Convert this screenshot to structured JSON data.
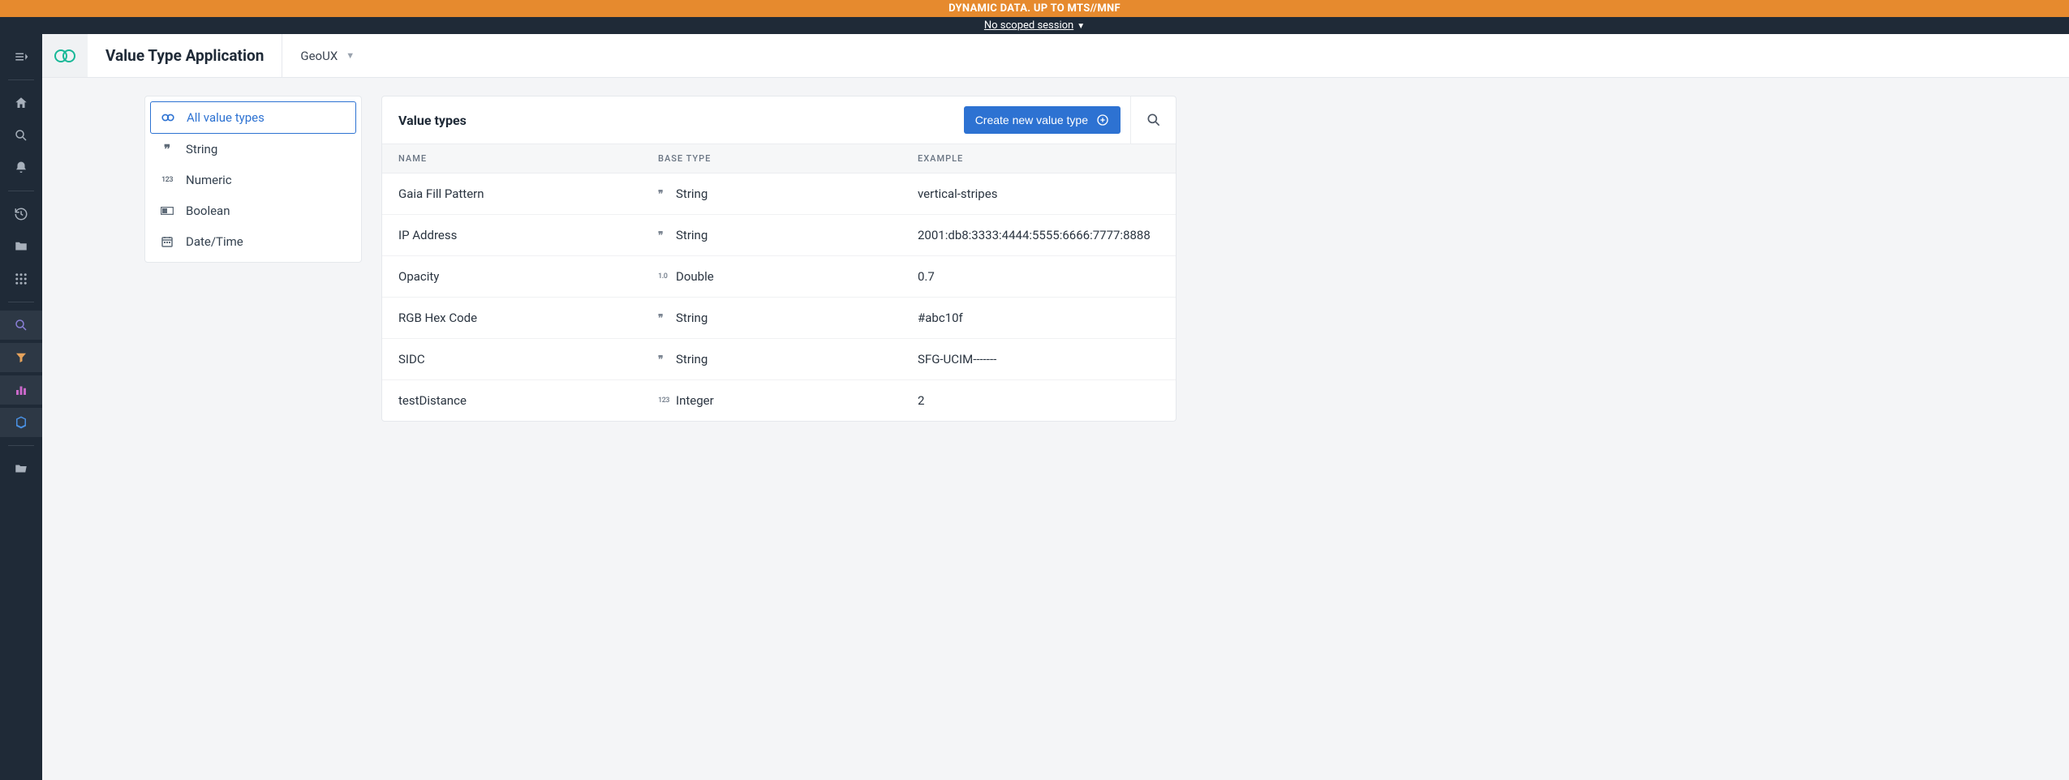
{
  "banner": {
    "top_text": "DYNAMIC DATA. UP TO MTS//MNF",
    "session_text": "No scoped session"
  },
  "topbar": {
    "title": "Value Type Application",
    "dropdown_label": "GeoUX"
  },
  "filters": {
    "items": [
      {
        "label": "All value types"
      },
      {
        "label": "String"
      },
      {
        "label": "Numeric"
      },
      {
        "label": "Boolean"
      },
      {
        "label": "Date/Time"
      }
    ]
  },
  "table": {
    "title": "Value types",
    "create_label": "Create new value type",
    "columns": {
      "name": "NAME",
      "base": "BASE TYPE",
      "example": "EXAMPLE"
    },
    "rows": [
      {
        "name": "Gaia Fill Pattern",
        "base": "String",
        "icon": "quote",
        "example": "vertical-stripes"
      },
      {
        "name": "IP Address",
        "base": "String",
        "icon": "quote",
        "example": "2001:db8:3333:4444:5555:6666:7777:8888"
      },
      {
        "name": "Opacity",
        "base": "Double",
        "icon": "num10",
        "example": "0.7"
      },
      {
        "name": "RGB Hex Code",
        "base": "String",
        "icon": "quote",
        "example": "#abc10f"
      },
      {
        "name": "SIDC",
        "base": "String",
        "icon": "quote",
        "example": "SFG-UCIM-------"
      },
      {
        "name": "testDistance",
        "base": "Integer",
        "icon": "num123",
        "example": "2"
      }
    ]
  },
  "colors": {
    "banner_orange": "#e68a2e",
    "banner_dark": "#1f2a37",
    "primary_blue": "#2d72d2",
    "logo_teal": "#17b897",
    "page_bg": "#f4f5f7",
    "border": "#e5e8ec",
    "text_muted": "#6b7684"
  }
}
